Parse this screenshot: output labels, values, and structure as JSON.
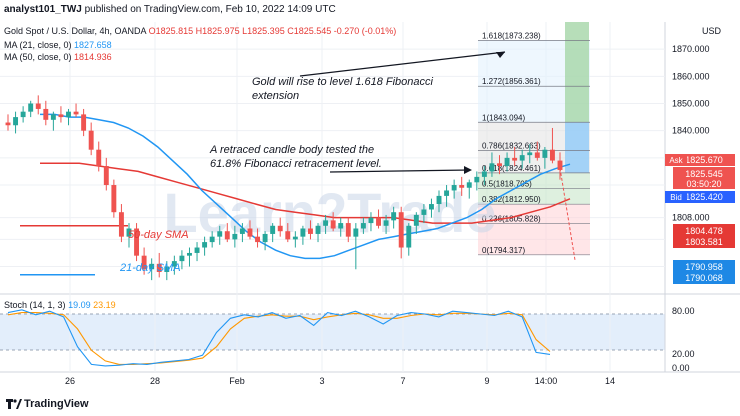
{
  "header": {
    "author": "analyst101_TWJ",
    "published": "published on TradingView.com, Feb 10, 2022 14:09 UTC"
  },
  "symbol": {
    "title": "Gold Spot / U.S. Dollar, 4h, OANDA",
    "ohlc": "O1825.815  H1825.975  L1825.395  C1825.545  -0.270 (-0.01%)"
  },
  "indicators": {
    "ma21_label": "MA (21, close, 0)",
    "ma21_value": "1827.658",
    "ma50_label": "MA (50, close, 0)",
    "ma50_value": "1814.936",
    "stoch_label": "Stoch (14, 1, 3)",
    "stoch_k": "19.09",
    "stoch_d": "23.19"
  },
  "axis": {
    "currency": "USD",
    "price_ticks": [
      "1870.000",
      "1860.000",
      "1850.000",
      "1840.000",
      "1808.000"
    ],
    "stoch_ticks": [
      "80.00",
      "20.00",
      "0.00"
    ],
    "time_ticks": [
      "26",
      "28",
      "Feb",
      "3",
      "7",
      "9",
      "14:00",
      "14"
    ]
  },
  "price_labels": {
    "ask_tag": "Ask",
    "ask": "1825.670",
    "last": "1825.545",
    "countdown": "03:50:20",
    "bid_tag": "Bid",
    "bid": "1825.420",
    "red1": "1804.478",
    "red2": "1803.581",
    "blue1": "1790.958",
    "blue2": "1790.068"
  },
  "fib_levels": [
    {
      "text": "1.618(1873.238)",
      "price": 1873.238
    },
    {
      "text": "1.272(1856.361)",
      "price": 1856.361
    },
    {
      "text": "1(1843.094)",
      "price": 1843.094
    },
    {
      "text": "0.786(1832.663)",
      "price": 1832.663
    },
    {
      "text": "0.618(1824.461)",
      "price": 1824.461
    },
    {
      "text": "0.5(1818.705)",
      "price": 1818.705
    },
    {
      "text": "0.382(1812.950)",
      "price": 1812.95
    },
    {
      "text": "0.236(1805.828)",
      "price": 1805.828
    },
    {
      "text": "0(1794.317)",
      "price": 1794.317
    }
  ],
  "annotations": {
    "gold_rise": [
      "Gold will rise to level 1.618 Fibonacci",
      "extension"
    ],
    "retraced": [
      "A retraced candle body tested the",
      "61.8% Fibonacci retracement level."
    ],
    "sma50": "50-day SMA",
    "sma21": "21-day SMA"
  },
  "watermark": "Learn2Trade",
  "footer": {
    "brand": "TradingView"
  },
  "colors": {
    "up": "#26a69a",
    "down": "#ef5350",
    "ma21": "#2196f3",
    "ma50": "#e53935",
    "stochK": "#2196f3",
    "stochD": "#ff9800"
  },
  "chart_data": {
    "type": "candlestick",
    "title": "Gold Spot / U.S. Dollar, 4h, OANDA",
    "ylim": [
      1781,
      1880
    ],
    "candles": [
      [
        1843,
        1846,
        1840,
        1842
      ],
      [
        1842,
        1847,
        1839,
        1845
      ],
      [
        1845,
        1849,
        1843,
        1847
      ],
      [
        1847,
        1851,
        1845,
        1850
      ],
      [
        1850,
        1853,
        1846,
        1848
      ],
      [
        1848,
        1851,
        1842,
        1844
      ],
      [
        1844,
        1847,
        1840,
        1846
      ],
      [
        1846,
        1849,
        1843,
        1845
      ],
      [
        1845,
        1848,
        1842,
        1847
      ],
      [
        1847,
        1850,
        1845,
        1846
      ],
      [
        1846,
        1848,
        1838,
        1840
      ],
      [
        1840,
        1843,
        1831,
        1833
      ],
      [
        1833,
        1836,
        1825,
        1827
      ],
      [
        1827,
        1830,
        1818,
        1820
      ],
      [
        1820,
        1822,
        1808,
        1810
      ],
      [
        1810,
        1813,
        1799,
        1801
      ],
      [
        1801,
        1806,
        1797,
        1804
      ],
      [
        1804,
        1806,
        1792,
        1794
      ],
      [
        1794,
        1797,
        1787,
        1789
      ],
      [
        1789,
        1793,
        1785,
        1791
      ],
      [
        1791,
        1795,
        1786,
        1788
      ],
      [
        1788,
        1792,
        1785,
        1790
      ],
      [
        1790,
        1794,
        1787,
        1792
      ],
      [
        1792,
        1796,
        1789,
        1794
      ],
      [
        1794,
        1797,
        1790,
        1795
      ],
      [
        1795,
        1799,
        1792,
        1797
      ],
      [
        1797,
        1801,
        1794,
        1799
      ],
      [
        1799,
        1803,
        1797,
        1801
      ],
      [
        1801,
        1805,
        1798,
        1803
      ],
      [
        1803,
        1806,
        1799,
        1800
      ],
      [
        1800,
        1805,
        1797,
        1802
      ],
      [
        1802,
        1806,
        1799,
        1804
      ],
      [
        1804,
        1807,
        1800,
        1801
      ],
      [
        1801,
        1804,
        1797,
        1799
      ],
      [
        1799,
        1803,
        1796,
        1802
      ],
      [
        1802,
        1806,
        1799,
        1805
      ],
      [
        1805,
        1808,
        1801,
        1803
      ],
      [
        1803,
        1806,
        1799,
        1800
      ],
      [
        1800,
        1803,
        1797,
        1801
      ],
      [
        1801,
        1805,
        1798,
        1804
      ],
      [
        1804,
        1807,
        1800,
        1802
      ],
      [
        1802,
        1806,
        1799,
        1805
      ],
      [
        1805,
        1809,
        1802,
        1807
      ],
      [
        1807,
        1810,
        1803,
        1804
      ],
      [
        1804,
        1808,
        1801,
        1806
      ],
      [
        1806,
        1808,
        1799,
        1801
      ],
      [
        1801,
        1806,
        1789,
        1804
      ],
      [
        1804,
        1808,
        1802,
        1806
      ],
      [
        1806,
        1810,
        1803,
        1808
      ],
      [
        1808,
        1811,
        1804,
        1805
      ],
      [
        1805,
        1809,
        1802,
        1807
      ],
      [
        1807,
        1812,
        1804,
        1810
      ],
      [
        1810,
        1812,
        1793,
        1797
      ],
      [
        1797,
        1806,
        1794,
        1805
      ],
      [
        1805,
        1810,
        1802,
        1809
      ],
      [
        1809,
        1813,
        1806,
        1811
      ],
      [
        1811,
        1815,
        1808,
        1813
      ],
      [
        1813,
        1818,
        1810,
        1816
      ],
      [
        1816,
        1820,
        1812,
        1818
      ],
      [
        1818,
        1822,
        1815,
        1820
      ],
      [
        1820,
        1823,
        1816,
        1819
      ],
      [
        1819,
        1822,
        1815,
        1821
      ],
      [
        1821,
        1825,
        1818,
        1823
      ],
      [
        1823,
        1827,
        1820,
        1825
      ],
      [
        1825,
        1832,
        1823,
        1828
      ],
      [
        1828,
        1831,
        1824,
        1827
      ],
      [
        1827,
        1832,
        1825,
        1830
      ],
      [
        1830,
        1834,
        1827,
        1829
      ],
      [
        1829,
        1833,
        1826,
        1831
      ],
      [
        1831,
        1835,
        1828,
        1832
      ],
      [
        1832,
        1836,
        1829,
        1830
      ],
      [
        1830,
        1834,
        1826,
        1833
      ],
      [
        1833,
        1841,
        1828,
        1829
      ],
      [
        1829,
        1832,
        1822,
        1825.545
      ]
    ],
    "ma21": [
      1846,
      1846,
      1845,
      1845,
      1844,
      1843,
      1841,
      1838,
      1834,
      1829,
      1824,
      1818,
      1813,
      1808,
      1803,
      1799,
      1796,
      1794,
      1793,
      1793,
      1794,
      1796,
      1798,
      1800,
      1801,
      1802,
      1803,
      1804,
      1806,
      1808,
      1811,
      1815,
      1818,
      1821,
      1824,
      1826,
      1827.658
    ],
    "ma50": [
      1828,
      1828,
      1828,
      1827,
      1826,
      1825,
      1823,
      1821,
      1819,
      1817,
      1815,
      1813,
      1811,
      1810,
      1809,
      1808,
      1808,
      1808,
      1808,
      1807,
      1806,
      1806,
      1806,
      1807,
      1808,
      1810,
      1812,
      1814.936
    ],
    "stoch_k": [
      78,
      82,
      75,
      80,
      72,
      30,
      5,
      3,
      4,
      6,
      5,
      8,
      10,
      12,
      18,
      50,
      70,
      75,
      72,
      78,
      70,
      74,
      60,
      78,
      74,
      80,
      72,
      62,
      74,
      78,
      76,
      72,
      80,
      78,
      76,
      74,
      80,
      72,
      22,
      19.09
    ],
    "stoch_d": [
      75,
      78,
      78,
      77,
      75,
      55,
      25,
      10,
      5,
      5,
      6,
      7,
      9,
      11,
      14,
      30,
      55,
      70,
      73,
      75,
      73,
      73,
      68,
      72,
      75,
      77,
      75,
      70,
      70,
      74,
      76,
      75,
      77,
      77,
      76,
      75,
      77,
      75,
      40,
      23.19
    ]
  }
}
